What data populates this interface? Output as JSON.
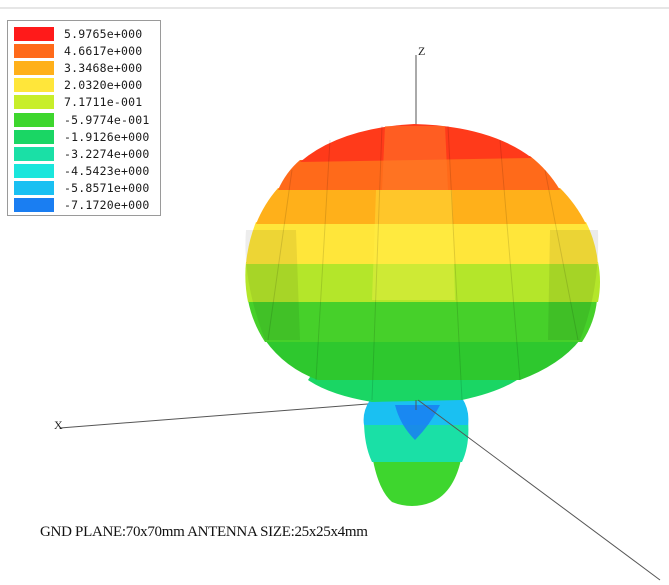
{
  "legend": {
    "entries": [
      {
        "label": "5.9765e+000",
        "color": "#ff1a1a"
      },
      {
        "label": "4.6617e+000",
        "color": "#ff6a1a"
      },
      {
        "label": "3.3468e+000",
        "color": "#ffb01a"
      },
      {
        "label": "2.0320e+000",
        "color": "#ffe63a"
      },
      {
        "label": "7.1711e-001",
        "color": "#c8ee2a"
      },
      {
        "label": "-5.9774e-001",
        "color": "#3ed62e"
      },
      {
        "label": "-1.9126e+000",
        "color": "#1ad664"
      },
      {
        "label": "-3.2274e+000",
        "color": "#1ae0a6"
      },
      {
        "label": "-4.5423e+000",
        "color": "#1ae6dc"
      },
      {
        "label": "-5.8571e+000",
        "color": "#1ac0f2"
      },
      {
        "label": "-7.1720e+000",
        "color": "#1a7ef2"
      }
    ]
  },
  "axes": {
    "z_label": "Z",
    "x_label": "X"
  },
  "caption": "GND PLANE:70x70mm ANTENNA SIZE:25x25x4mm"
}
